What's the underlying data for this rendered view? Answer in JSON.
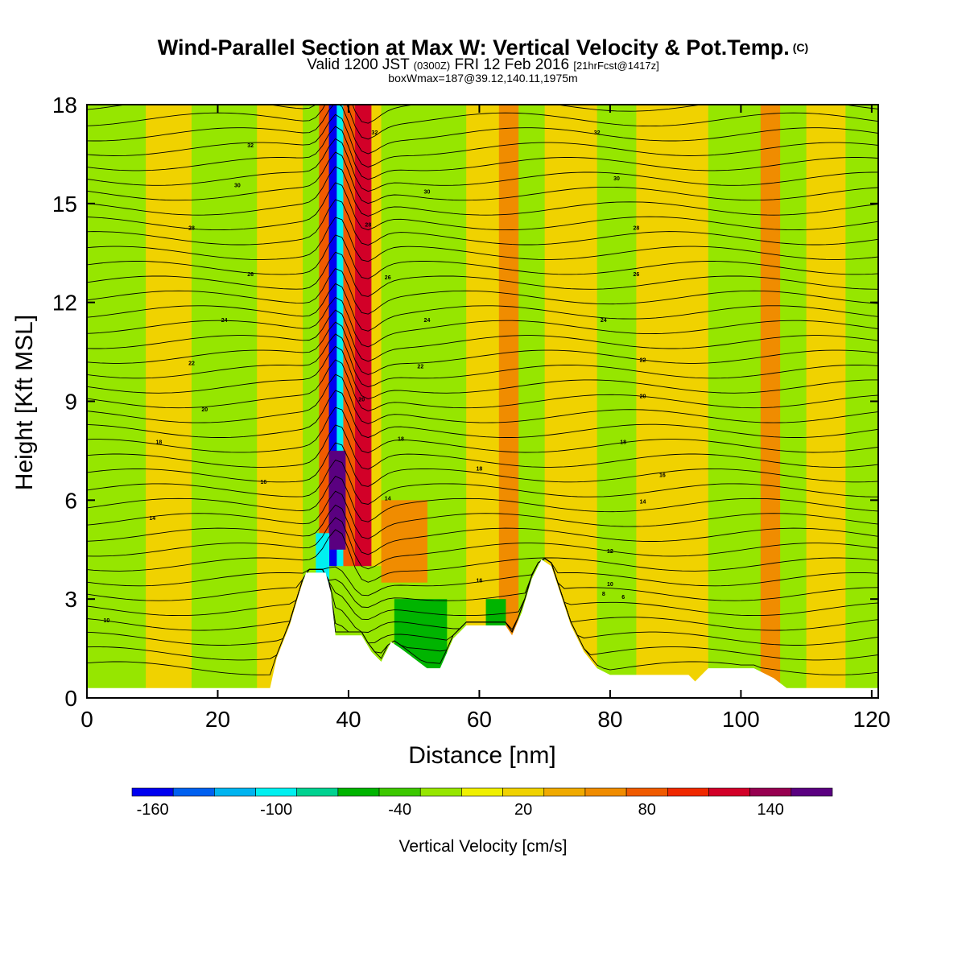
{
  "title": {
    "main": "Wind-Parallel Section at Max W: Vertical Velocity & Pot.Temp.",
    "copyright": "(C)",
    "valid_prefix": "Valid 1200 JST",
    "valid_utc": "(0300Z)",
    "valid_date": "FRI 12 Feb 2016",
    "forecast": "[21hrFcst@1417z]",
    "box": "boxWmax=187@39.12,140.11,1975m"
  },
  "chart_data": {
    "type": "heatmap",
    "xlabel": "Distance [nm]",
    "ylabel": "Height [Kft MSL]",
    "xlim": [
      0,
      121
    ],
    "ylim": [
      0,
      18
    ],
    "x_ticks": [
      "0",
      "20",
      "40",
      "60",
      "80",
      "100",
      "120"
    ],
    "y_ticks": [
      "0",
      "3",
      "6",
      "9",
      "12",
      "15",
      "18"
    ],
    "colorbar": {
      "title": "Vertical Velocity [cm/s]",
      "levels": [
        -170,
        -150,
        -130,
        -110,
        -90,
        -70,
        -50,
        -30,
        -10,
        10,
        30,
        50,
        70,
        90,
        110,
        130,
        150,
        170
      ],
      "tick_labels": [
        "-160",
        "-100",
        "-40",
        "20",
        "80",
        "140"
      ],
      "colors": [
        "#0000f0",
        "#0060f0",
        "#00b4f0",
        "#00f0f0",
        "#00d290",
        "#00b400",
        "#3cc800",
        "#96e600",
        "#f0f000",
        "#f0d200",
        "#f0aa00",
        "#f08c00",
        "#f05a00",
        "#f02800",
        "#d20028",
        "#960050",
        "#5a0080"
      ]
    },
    "vertical_velocity_cells": [
      {
        "x": [
          0,
          9
        ],
        "y": [
          0,
          18
        ],
        "value": -20
      },
      {
        "x": [
          9,
          16
        ],
        "y": [
          0,
          18
        ],
        "value": 20
      },
      {
        "x": [
          16,
          26
        ],
        "y": [
          0,
          18
        ],
        "value": -20
      },
      {
        "x": [
          26,
          33
        ],
        "y": [
          0,
          18
        ],
        "value": 20
      },
      {
        "x": [
          33,
          35.5
        ],
        "y": [
          0,
          18
        ],
        "value": -20
      },
      {
        "x": [
          35.5,
          37
        ],
        "y": [
          4,
          18
        ],
        "value": 80
      },
      {
        "x": [
          37,
          38.2
        ],
        "y": [
          4,
          18
        ],
        "value": -160
      },
      {
        "x": [
          38.2,
          39.2
        ],
        "y": [
          4,
          18
        ],
        "value": -100
      },
      {
        "x": [
          39.2,
          41
        ],
        "y": [
          4,
          18
        ],
        "value": 80
      },
      {
        "x": [
          41,
          43.5
        ],
        "y": [
          4,
          18
        ],
        "value": 110
      },
      {
        "x": [
          43.5,
          45
        ],
        "y": [
          4,
          18
        ],
        "value": 20
      },
      {
        "x": [
          37,
          39.5
        ],
        "y": [
          4.5,
          7.5
        ],
        "value": 150
      },
      {
        "x": [
          35,
          37
        ],
        "y": [
          3.5,
          5
        ],
        "value": -110
      },
      {
        "x": [
          45,
          58
        ],
        "y": [
          0,
          18
        ],
        "value": -20
      },
      {
        "x": [
          45,
          52
        ],
        "y": [
          3.5,
          6
        ],
        "value": 50
      },
      {
        "x": [
          58,
          63
        ],
        "y": [
          0,
          18
        ],
        "value": 20
      },
      {
        "x": [
          63,
          66
        ],
        "y": [
          0,
          18
        ],
        "value": 50
      },
      {
        "x": [
          66,
          70
        ],
        "y": [
          0,
          18
        ],
        "value": -20
      },
      {
        "x": [
          70,
          78
        ],
        "y": [
          0,
          18
        ],
        "value": 20
      },
      {
        "x": [
          78,
          84
        ],
        "y": [
          0,
          18
        ],
        "value": -20
      },
      {
        "x": [
          84,
          95
        ],
        "y": [
          0,
          18
        ],
        "value": 20
      },
      {
        "x": [
          95,
          103
        ],
        "y": [
          0,
          18
        ],
        "value": -20
      },
      {
        "x": [
          103,
          106
        ],
        "y": [
          0,
          18
        ],
        "value": 50
      },
      {
        "x": [
          106,
          110
        ],
        "y": [
          0,
          18
        ],
        "value": -20
      },
      {
        "x": [
          110,
          116
        ],
        "y": [
          0,
          18
        ],
        "value": 20
      },
      {
        "x": [
          116,
          121
        ],
        "y": [
          0,
          18
        ],
        "value": -20
      },
      {
        "x": [
          47,
          55
        ],
        "y": [
          0.5,
          3
        ],
        "value": -70
      },
      {
        "x": [
          61,
          64
        ],
        "y": [
          1.5,
          3
        ],
        "value": -70
      }
    ],
    "terrain": [
      [
        0,
        0.3
      ],
      [
        28,
        0.3
      ],
      [
        29,
        1.2
      ],
      [
        31,
        2.2
      ],
      [
        32.5,
        3.2
      ],
      [
        33.5,
        3.8
      ],
      [
        36.5,
        3.8
      ],
      [
        37.3,
        3.2
      ],
      [
        38,
        1.9
      ],
      [
        42,
        1.9
      ],
      [
        43.5,
        1.4
      ],
      [
        45,
        1.1
      ],
      [
        46.5,
        1.7
      ],
      [
        48,
        1.5
      ],
      [
        50,
        1.2
      ],
      [
        52,
        0.9
      ],
      [
        54,
        0.9
      ],
      [
        56,
        1.8
      ],
      [
        58,
        2.2
      ],
      [
        64,
        2.2
      ],
      [
        65,
        1.9
      ],
      [
        66.5,
        2.6
      ],
      [
        68,
        3.6
      ],
      [
        69.5,
        4.2
      ],
      [
        71,
        4.0
      ],
      [
        72,
        3.4
      ],
      [
        74,
        2.2
      ],
      [
        76,
        1.4
      ],
      [
        78,
        0.9
      ],
      [
        80,
        0.7
      ],
      [
        92,
        0.7
      ],
      [
        93,
        0.5
      ],
      [
        95,
        0.9
      ],
      [
        102,
        0.9
      ],
      [
        105,
        0.6
      ],
      [
        107,
        0.3
      ],
      [
        121,
        0.3
      ]
    ],
    "potential_temperature_contours": [
      {
        "label": "10",
        "x": 3,
        "y": 2.3
      },
      {
        "label": "14",
        "x": 10,
        "y": 5.4
      },
      {
        "label": "16",
        "x": 27,
        "y": 6.5
      },
      {
        "label": "18",
        "x": 11,
        "y": 7.7
      },
      {
        "label": "20",
        "x": 18,
        "y": 8.7
      },
      {
        "label": "22",
        "x": 16,
        "y": 10.1
      },
      {
        "label": "24",
        "x": 21,
        "y": 11.4
      },
      {
        "label": "26",
        "x": 25,
        "y": 12.8
      },
      {
        "label": "28",
        "x": 16,
        "y": 14.2
      },
      {
        "label": "30",
        "x": 23,
        "y": 15.5
      },
      {
        "label": "32",
        "x": 25,
        "y": 16.7
      },
      {
        "label": "32",
        "x": 44,
        "y": 17.1
      },
      {
        "label": "28",
        "x": 43,
        "y": 14.3
      },
      {
        "label": "26",
        "x": 46,
        "y": 12.7
      },
      {
        "label": "20",
        "x": 42,
        "y": 9.0
      },
      {
        "label": "18",
        "x": 48,
        "y": 7.8
      },
      {
        "label": "14",
        "x": 46,
        "y": 6.0
      },
      {
        "label": "18",
        "x": 60,
        "y": 6.9
      },
      {
        "label": "30",
        "x": 52,
        "y": 15.3
      },
      {
        "label": "24",
        "x": 52,
        "y": 11.4
      },
      {
        "label": "22",
        "x": 51,
        "y": 10.0
      },
      {
        "label": "16",
        "x": 60,
        "y": 3.5
      },
      {
        "label": "32",
        "x": 78,
        "y": 17.1
      },
      {
        "label": "30",
        "x": 81,
        "y": 15.7
      },
      {
        "label": "28",
        "x": 84,
        "y": 14.2
      },
      {
        "label": "26",
        "x": 84,
        "y": 12.8
      },
      {
        "label": "24",
        "x": 79,
        "y": 11.4
      },
      {
        "label": "22",
        "x": 85,
        "y": 10.2
      },
      {
        "label": "20",
        "x": 85,
        "y": 9.1
      },
      {
        "label": "18",
        "x": 82,
        "y": 7.7
      },
      {
        "label": "16",
        "x": 88,
        "y": 6.7
      },
      {
        "label": "14",
        "x": 85,
        "y": 5.9
      },
      {
        "label": "12",
        "x": 80,
        "y": 4.4
      },
      {
        "label": "10",
        "x": 80,
        "y": 3.4
      },
      {
        "label": "8",
        "x": 79,
        "y": 3.1
      },
      {
        "label": "6",
        "x": 82,
        "y": 3.0
      }
    ]
  }
}
